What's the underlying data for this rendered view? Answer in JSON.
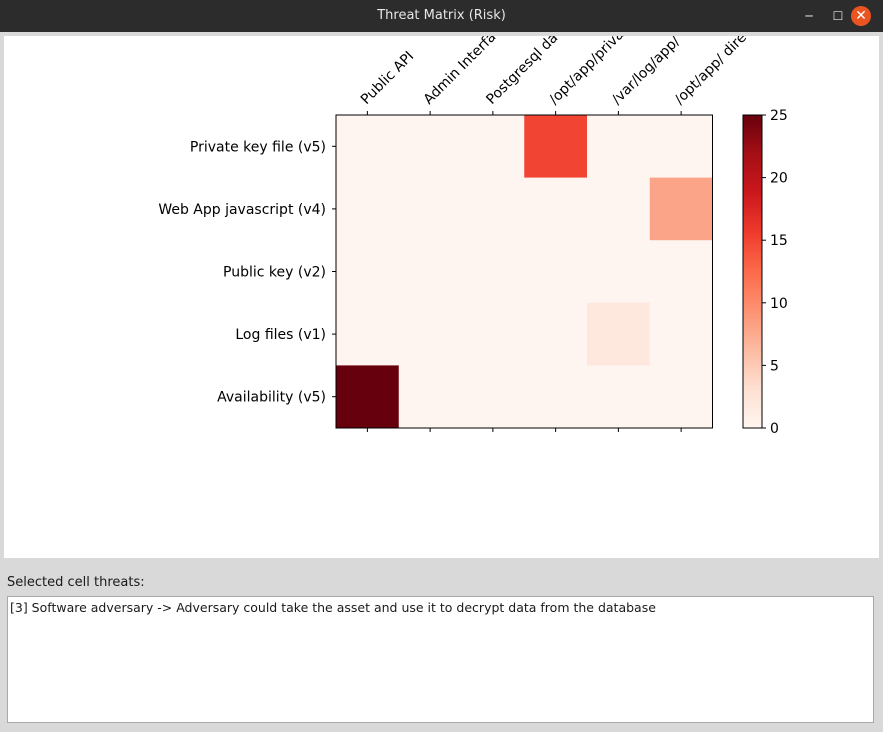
{
  "window": {
    "title": "Threat Matrix (Risk)",
    "minimize_glyph": "─",
    "maximize_glyph": "☐",
    "close_glyph": "✕"
  },
  "chart_data": {
    "type": "heatmap",
    "columns": [
      "Public API",
      "Admin Interfa",
      "Postgresql da",
      "/opt/app/priva",
      "/var/log/app/",
      "/opt/app/ dire"
    ],
    "rows": [
      "Private key file (v5)",
      "Web App javascript (v4)",
      "Public key (v2)",
      "Log files (v1)",
      "Availability (v5)"
    ],
    "values": [
      [
        0,
        0,
        0,
        15,
        0,
        0
      ],
      [
        0,
        0,
        0,
        0,
        0,
        8
      ],
      [
        0,
        0,
        0,
        0,
        0,
        0
      ],
      [
        0,
        0,
        0,
        0,
        2,
        0
      ],
      [
        25,
        0,
        0,
        0,
        0,
        0
      ]
    ],
    "colormap": "Reds",
    "colorbar": {
      "min": 0,
      "max": 25,
      "ticks": [
        0,
        5,
        10,
        15,
        20,
        25
      ]
    },
    "column_labels_rotation": "45 degrees, top"
  },
  "selected": {
    "label": "Selected cell threats:",
    "text": "[3] Software adversary -> Adversary could take the asset and use it to decrypt data from the database"
  }
}
